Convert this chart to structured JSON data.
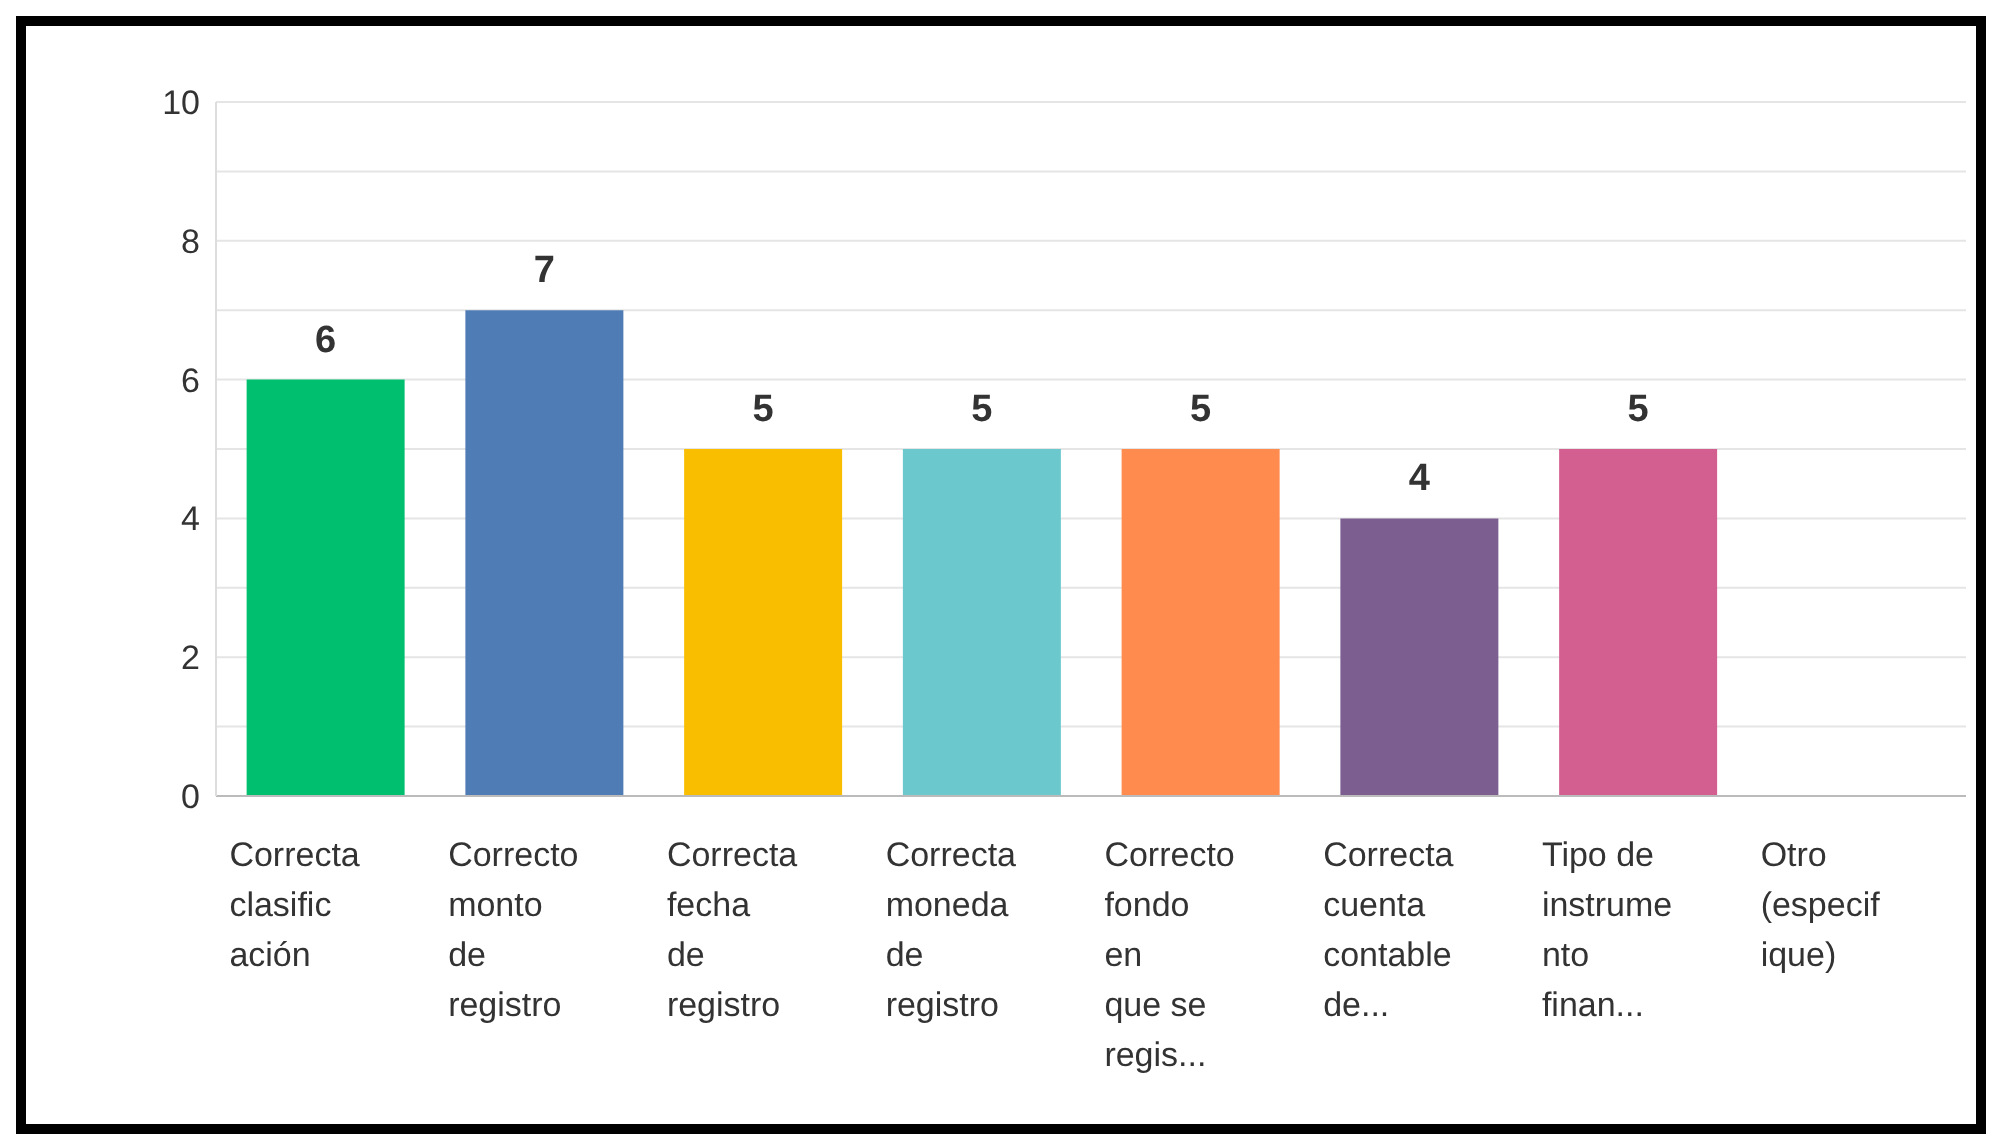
{
  "chart_data": {
    "type": "bar",
    "categories": [
      "Correcta\nclasific\nación",
      "Correcto\nmonto\nde\nregistro",
      "Correcta\nfecha\nde\nregistro",
      "Correcta\nmoneda\nde\nregistro",
      "Correcto\nfondo\nen\nque se\nregis...",
      "Correcta\ncuenta\ncontable\nde...",
      "Tipo de\ninstrume\nnto\nfinan...",
      "Otro\n(especif\nique)"
    ],
    "values": [
      6,
      7,
      5,
      5,
      5,
      4,
      5,
      null
    ],
    "colors": [
      "#00bf6f",
      "#507cb6",
      "#f9be00",
      "#6bc8cd",
      "#ff8b4f",
      "#7d5e90",
      "#d25f90",
      "#999999"
    ],
    "ylim": [
      0,
      10
    ],
    "yticks": [
      0,
      {
        "value": 1,
        "label": null
      },
      2,
      {
        "value": 3,
        "label": null
      },
      4,
      {
        "value": 5,
        "label": null
      },
      6,
      {
        "value": 7,
        "label": null
      },
      8,
      {
        "value": 9,
        "label": null
      },
      10
    ],
    "grid": "y",
    "data_labels": true
  }
}
